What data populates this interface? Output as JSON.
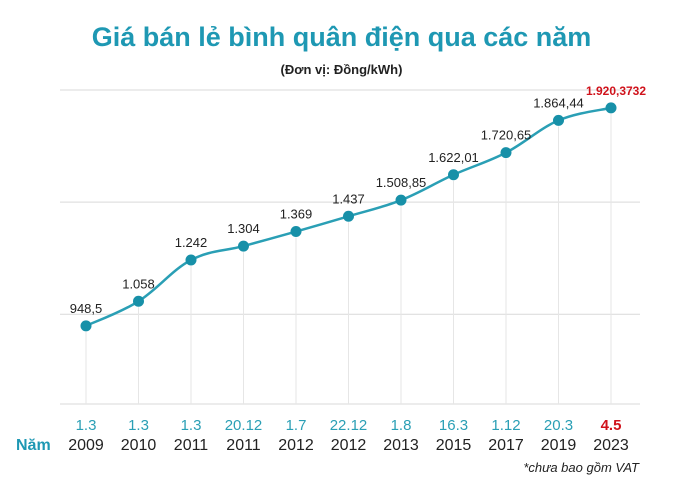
{
  "title": "Giá bán lẻ bình quân điện qua các năm",
  "subtitle": "(Đơn vị: Đồng/kWh)",
  "footnote": "*chưa bao gồm VAT",
  "colors": {
    "title": "#1e98b3",
    "line": "#2a9fb5",
    "marker": "#1790a8",
    "highlight": "#d0121b",
    "date_label": "#2a9fb5",
    "grid": "#d9d9d9",
    "text": "#222222"
  },
  "chart_data": {
    "type": "line",
    "title": "Giá bán lẻ bình quân điện qua các năm",
    "unit": "(Đơn vị: Đồng/kWh)",
    "row_label": "Năm",
    "grid": true,
    "categories": [
      {
        "date": "1.3",
        "year": "2009",
        "value": 948.5,
        "label": "948,5"
      },
      {
        "date": "1.3",
        "year": "2010",
        "value": 1058,
        "label": "1.058"
      },
      {
        "date": "1.3",
        "year": "2011",
        "value": 1242,
        "label": "1.242"
      },
      {
        "date": "20.12",
        "year": "2011",
        "value": 1304,
        "label": "1.304"
      },
      {
        "date": "1.7",
        "year": "2012",
        "value": 1369,
        "label": "1.369"
      },
      {
        "date": "22.12",
        "year": "2012",
        "value": 1437,
        "label": "1.437"
      },
      {
        "date": "1.8",
        "year": "2013",
        "value": 1508.85,
        "label": "1.508,85"
      },
      {
        "date": "16.3",
        "year": "2015",
        "value": 1622.01,
        "label": "1.622,01"
      },
      {
        "date": "1.12",
        "year": "2017",
        "value": 1720.65,
        "label": "1.720,65"
      },
      {
        "date": "20.3",
        "year": "2019",
        "value": 1864.44,
        "label": "1.864,44"
      },
      {
        "date": "4.5",
        "year": "2023",
        "value": 1920.3732,
        "label": "1.920,3732",
        "highlight": true
      }
    ],
    "ylim": [
      600,
      2000
    ]
  }
}
